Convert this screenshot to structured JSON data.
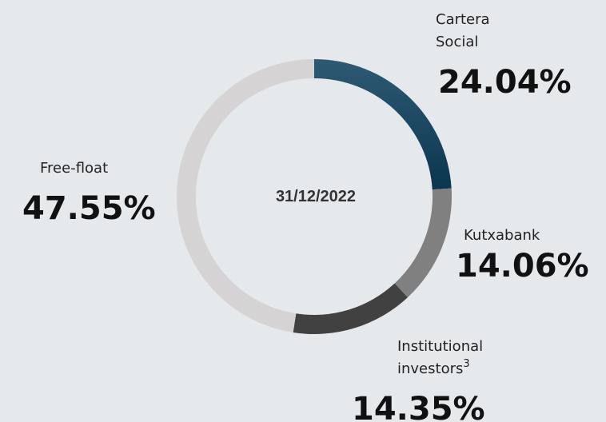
{
  "chart_data": {
    "type": "pie",
    "donut": true,
    "center_label": "31/12/2022",
    "categories": [
      "Cartera Social",
      "Kutxabank",
      "Institutional investors",
      "Free-float"
    ],
    "footnote_marks": [
      null,
      null,
      "3",
      null
    ],
    "values": [
      24.04,
      14.06,
      14.35,
      47.55
    ],
    "value_labels": [
      "24.04%",
      "14.06%",
      "14.35%",
      "47.55%"
    ],
    "colors": [
      "#0f3f5a",
      "#808080",
      "#414141",
      "#d5d3d4"
    ]
  }
}
